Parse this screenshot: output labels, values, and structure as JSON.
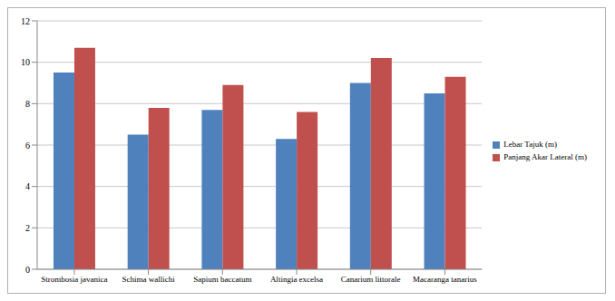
{
  "chart_data": {
    "type": "bar",
    "categories": [
      "Strombosia javanica",
      "Schima wallichi",
      "Sapium baccatum",
      "Altingia excelsa",
      "Canarium littorale",
      "Macaranga tanarius"
    ],
    "series": [
      {
        "name": "Lebar Tajuk (m)",
        "color": "#4f81bd",
        "values": [
          9.5,
          6.5,
          7.7,
          6.3,
          9.0,
          8.5
        ]
      },
      {
        "name": "Panjang Akar Lateral (m)",
        "color": "#c0504d",
        "values": [
          10.7,
          7.8,
          8.9,
          7.6,
          10.2,
          9.3
        ]
      }
    ],
    "ylim": [
      0,
      12
    ],
    "yticks": [
      0,
      2,
      4,
      6,
      8,
      10,
      12
    ],
    "grid": true,
    "legend": "right"
  }
}
